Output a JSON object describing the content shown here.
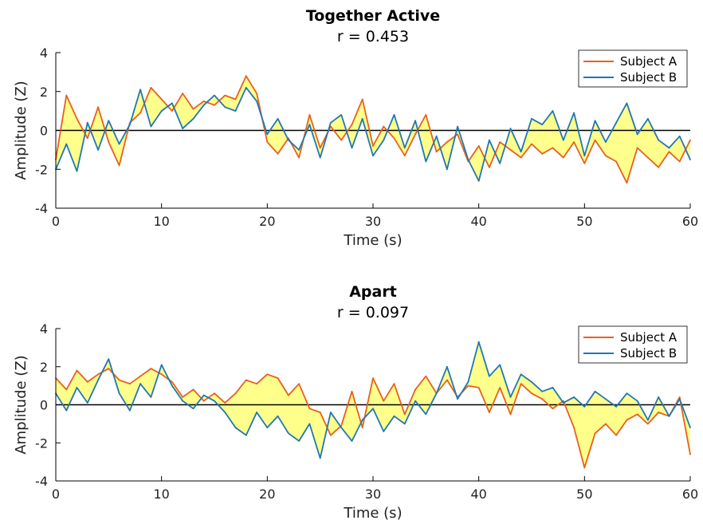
{
  "colors": {
    "subject_a": "#e8601c",
    "subject_b": "#1f77b4",
    "fill": "#ffff80",
    "zero_line": "#000000",
    "axes": "#000000"
  },
  "chart_data": [
    {
      "type": "line",
      "title": "Together Active",
      "subtitle": "r = 0.453",
      "xlabel": "Time (s)",
      "ylabel": "Amplitude (Z)",
      "xlim": [
        0,
        60
      ],
      "ylim": [
        -4,
        4
      ],
      "xticks": [
        "0",
        "10",
        "20",
        "30",
        "40",
        "50",
        "60"
      ],
      "yticks": [
        "-4",
        "-2",
        "0",
        "2",
        "4"
      ],
      "legend_position": "top-right",
      "fill_between": true,
      "zero_line": true,
      "series": [
        {
          "name": "Subject A",
          "color": "#e8601c",
          "x": [
            0,
            1,
            2,
            3,
            4,
            5,
            6,
            7,
            8,
            9,
            10,
            11,
            12,
            13,
            14,
            15,
            16,
            17,
            18,
            19,
            20,
            21,
            22,
            23,
            24,
            25,
            26,
            27,
            28,
            29,
            30,
            31,
            32,
            33,
            34,
            35,
            36,
            37,
            38,
            39,
            40,
            41,
            42,
            43,
            44,
            45,
            46,
            47,
            48,
            49,
            50,
            51,
            52,
            53,
            54,
            55,
            56,
            57,
            58,
            59,
            60
          ],
          "values": [
            -1.5,
            1.8,
            0.6,
            -0.4,
            1.2,
            -0.6,
            -1.8,
            0.4,
            0.9,
            2.2,
            1.6,
            1.0,
            1.9,
            1.1,
            1.5,
            1.3,
            1.8,
            1.6,
            2.8,
            1.9,
            -0.6,
            -1.2,
            -0.4,
            -1.4,
            0.8,
            -0.9,
            0.2,
            -0.5,
            0.3,
            1.6,
            -0.8,
            0.2,
            -0.4,
            -1.3,
            -0.2,
            0.8,
            -1.1,
            -0.6,
            -0.2,
            -1.6,
            -0.8,
            -1.9,
            -0.6,
            -1.0,
            -1.4,
            -0.7,
            -1.2,
            -0.9,
            -1.4,
            -0.6,
            -1.7,
            -0.5,
            -1.3,
            -1.6,
            -2.7,
            -0.9,
            -1.4,
            -1.9,
            -1.1,
            -1.6,
            -0.5
          ]
        },
        {
          "name": "Subject B",
          "color": "#1f77b4",
          "x": [
            0,
            1,
            2,
            3,
            4,
            5,
            6,
            7,
            8,
            9,
            10,
            11,
            12,
            13,
            14,
            15,
            16,
            17,
            18,
            19,
            20,
            21,
            22,
            23,
            24,
            25,
            26,
            27,
            28,
            29,
            30,
            31,
            32,
            33,
            34,
            35,
            36,
            37,
            38,
            39,
            40,
            41,
            42,
            43,
            44,
            45,
            46,
            47,
            48,
            49,
            50,
            51,
            52,
            53,
            54,
            55,
            56,
            57,
            58,
            59,
            60
          ],
          "values": [
            -2.0,
            -0.7,
            -2.1,
            0.4,
            -1.0,
            0.5,
            -0.7,
            0.3,
            2.1,
            0.2,
            1.0,
            1.4,
            0.1,
            0.6,
            1.3,
            1.8,
            1.2,
            1.0,
            2.2,
            1.5,
            -0.2,
            0.6,
            -0.5,
            -1.0,
            0.3,
            -1.4,
            0.4,
            0.8,
            -0.9,
            0.6,
            -1.3,
            -0.5,
            0.8,
            -0.9,
            0.5,
            -1.6,
            -0.3,
            -2.0,
            0.2,
            -1.5,
            -2.6,
            -0.5,
            -1.7,
            0.1,
            -1.1,
            0.6,
            0.3,
            1.0,
            -0.5,
            0.9,
            -1.3,
            0.5,
            -0.6,
            0.4,
            1.4,
            -0.2,
            0.6,
            -0.5,
            -0.9,
            -0.3,
            -1.5
          ]
        }
      ]
    },
    {
      "type": "line",
      "title": "Apart",
      "subtitle": "r = 0.097",
      "xlabel": "Time (s)",
      "ylabel": "Amplitude (Z)",
      "xlim": [
        0,
        60
      ],
      "ylim": [
        -4,
        4
      ],
      "xticks": [
        "0",
        "10",
        "20",
        "30",
        "40",
        "50",
        "60"
      ],
      "yticks": [
        "-4",
        "-2",
        "0",
        "2",
        "4"
      ],
      "legend_position": "top-right",
      "fill_between": true,
      "zero_line": true,
      "series": [
        {
          "name": "Subject A",
          "color": "#e8601c",
          "x": [
            0,
            1,
            2,
            3,
            4,
            5,
            6,
            7,
            8,
            9,
            10,
            11,
            12,
            13,
            14,
            15,
            16,
            17,
            18,
            19,
            20,
            21,
            22,
            23,
            24,
            25,
            26,
            27,
            28,
            29,
            30,
            31,
            32,
            33,
            34,
            35,
            36,
            37,
            38,
            39,
            40,
            41,
            42,
            43,
            44,
            45,
            46,
            47,
            48,
            49,
            50,
            51,
            52,
            53,
            54,
            55,
            56,
            57,
            58,
            59,
            60
          ],
          "values": [
            1.4,
            0.8,
            1.8,
            1.2,
            1.6,
            1.9,
            1.3,
            1.1,
            1.5,
            1.9,
            1.6,
            1.2,
            0.4,
            0.8,
            0.2,
            0.6,
            0.1,
            0.6,
            1.3,
            1.1,
            1.6,
            1.4,
            0.5,
            1.1,
            -0.2,
            -0.4,
            -1.6,
            -1.1,
            0.7,
            -1.2,
            1.4,
            0.2,
            1.1,
            -0.5,
            0.8,
            1.5,
            0.6,
            1.3,
            0.4,
            1.0,
            0.9,
            -0.4,
            0.9,
            -0.5,
            1.1,
            0.6,
            0.3,
            -0.2,
            0.2,
            -1.2,
            -3.3,
            -1.5,
            -1.0,
            -1.6,
            -0.8,
            -0.5,
            -1.0,
            -0.4,
            -0.6,
            0.4,
            -2.6
          ]
        },
        {
          "name": "Subject B",
          "color": "#1f77b4",
          "x": [
            0,
            1,
            2,
            3,
            4,
            5,
            6,
            7,
            8,
            9,
            10,
            11,
            12,
            13,
            14,
            15,
            16,
            17,
            18,
            19,
            20,
            21,
            22,
            23,
            24,
            25,
            26,
            27,
            28,
            29,
            30,
            31,
            32,
            33,
            34,
            35,
            36,
            37,
            38,
            39,
            40,
            41,
            42,
            43,
            44,
            45,
            46,
            47,
            48,
            49,
            50,
            51,
            52,
            53,
            54,
            55,
            56,
            57,
            58,
            59,
            60
          ],
          "values": [
            0.6,
            -0.3,
            0.9,
            0.1,
            1.3,
            2.4,
            0.6,
            -0.3,
            1.1,
            0.4,
            2.1,
            1.0,
            0.2,
            -0.2,
            0.5,
            0.2,
            -0.4,
            -1.2,
            -1.6,
            -0.4,
            -1.2,
            -0.6,
            -1.5,
            -1.9,
            -1.0,
            -2.8,
            -0.4,
            -1.2,
            -1.9,
            -0.8,
            -0.2,
            -1.4,
            -0.6,
            -1.0,
            0.2,
            -0.5,
            0.6,
            2.0,
            0.3,
            1.2,
            3.3,
            1.5,
            2.1,
            0.4,
            1.6,
            1.2,
            0.7,
            0.9,
            0.1,
            0.4,
            -0.1,
            0.7,
            0.3,
            -0.1,
            0.6,
            0.2,
            -0.8,
            0.4,
            -0.6,
            0.3,
            -1.2
          ]
        }
      ]
    }
  ]
}
